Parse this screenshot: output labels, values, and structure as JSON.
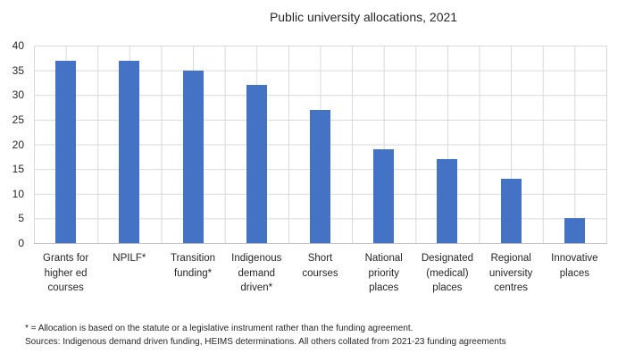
{
  "chart_data": {
    "type": "bar",
    "title": "Public university allocations, 2021",
    "categories": [
      "Grants for higher ed courses",
      "NPILF*",
      "Transition funding*",
      "Indigenous demand driven*",
      "Short courses",
      "National priority places",
      "Designated (medical) places",
      "Regional university centres",
      "Innovative places"
    ],
    "category_lines": [
      [
        "Grants for",
        "higher ed",
        "courses"
      ],
      [
        "NPILF*"
      ],
      [
        "Transition",
        "funding*"
      ],
      [
        "Indigenous",
        "demand",
        "driven*"
      ],
      [
        "Short",
        "courses"
      ],
      [
        "National",
        "priority",
        "places"
      ],
      [
        "Designated",
        "(medical)",
        "places"
      ],
      [
        "Regional",
        "university",
        "centres"
      ],
      [
        "Innovative",
        "places"
      ]
    ],
    "values": [
      37,
      37,
      35,
      32,
      27,
      19,
      17,
      13,
      5
    ],
    "xlabel": "",
    "ylabel": "",
    "ylim": [
      0,
      40
    ],
    "ytick_step": 5,
    "yticks": [
      0,
      5,
      10,
      15,
      20,
      25,
      30,
      35,
      40
    ],
    "grid": "both",
    "legend": "none",
    "bar_color": "#4472c4",
    "gridline_color": "#d9d9d9",
    "axis_line_color": "#bfbfbf"
  },
  "footnotes": {
    "line1": "* = Allocation is based on the statute or a legislative instrument rather than the funding agreement.",
    "line2": "Sources: Indigenous demand driven funding, HEIMS determinations. All others collated from 2021-23 funding agreements"
  }
}
